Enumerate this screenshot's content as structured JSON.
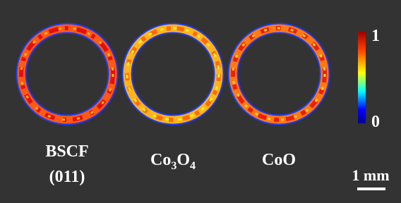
{
  "samples": [
    {
      "lines": [
        "BSCF",
        "(011)"
      ]
    },
    {
      "formula": [
        "Co",
        "3",
        "O",
        "4"
      ]
    },
    {
      "lines": [
        "CoO"
      ]
    }
  ],
  "colorbar": {
    "max": 1,
    "min": 0
  },
  "scale_bar": {
    "label": "1 mm"
  }
}
